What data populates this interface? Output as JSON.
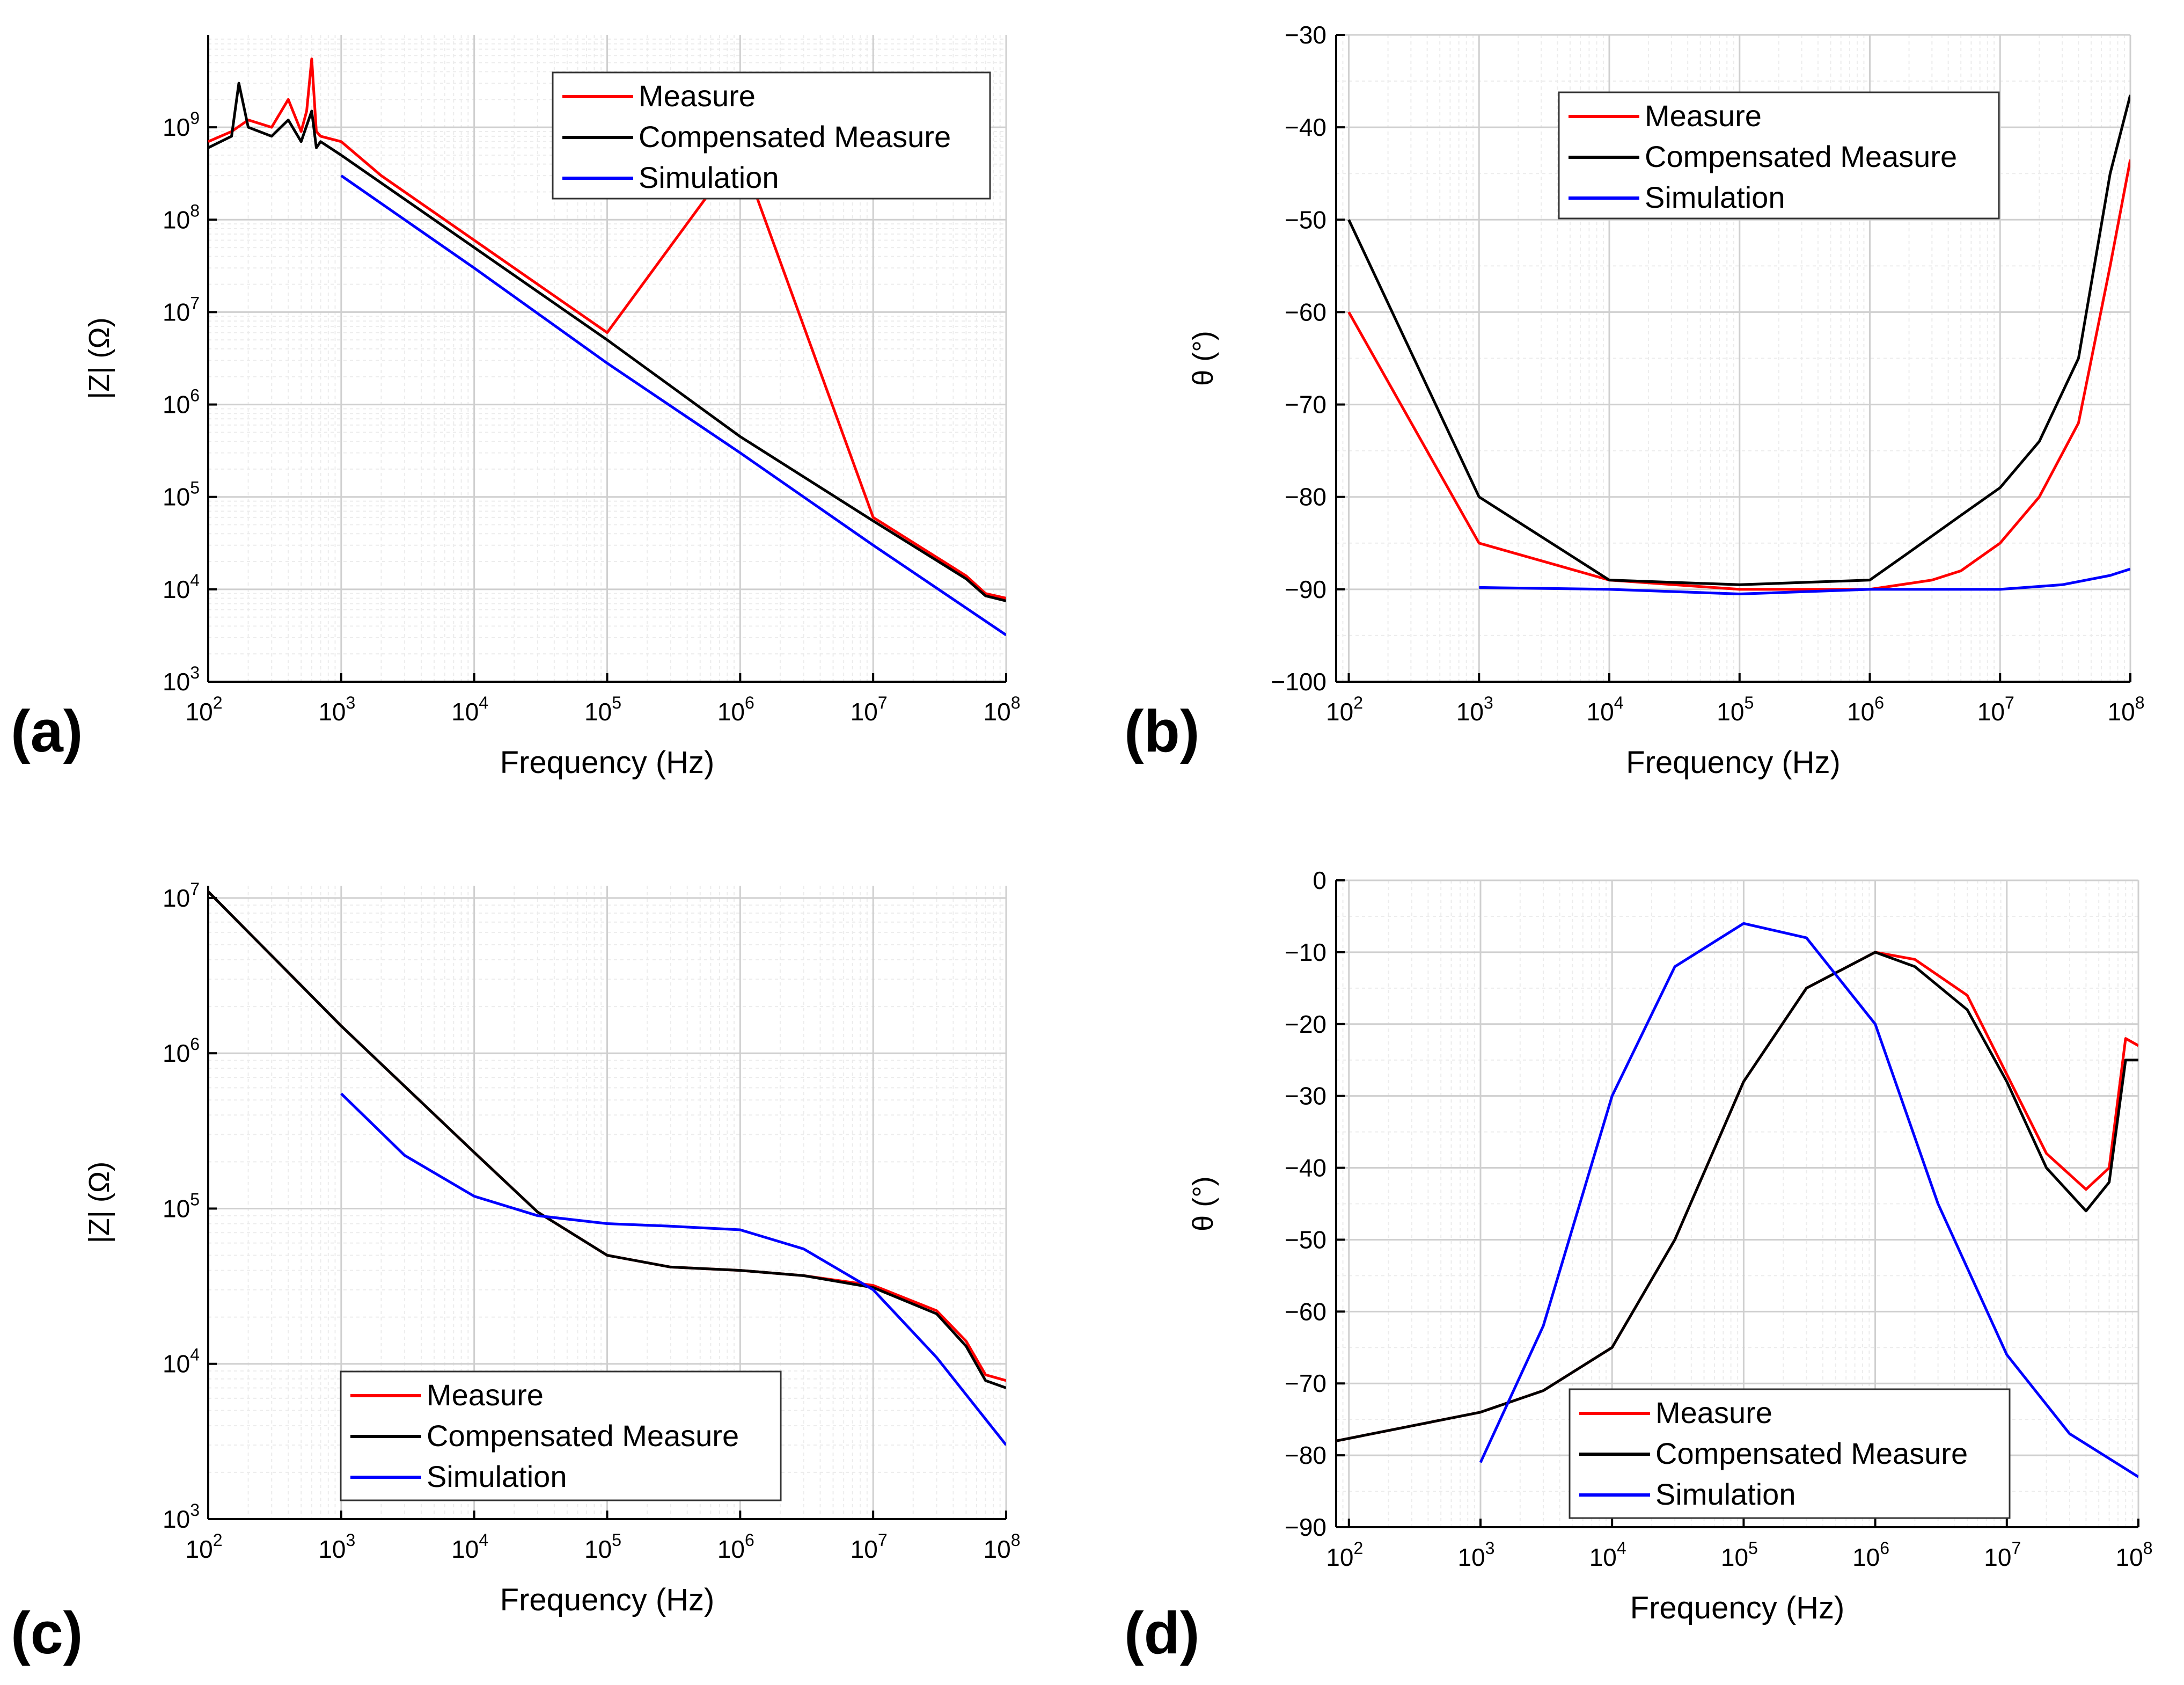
{
  "figure": {
    "panel_labels": [
      "(a)",
      "(b)",
      "(c)",
      "(d)"
    ]
  },
  "colors": {
    "measure": "#ff0000",
    "compensated": "#000000",
    "simulation": "#0000ff",
    "grid_major": "#cfcfcf",
    "grid_minor": "#ececec",
    "axis": "#000000"
  },
  "chart_data": [
    {
      "id": "a",
      "type": "line",
      "x_scale": "log",
      "y_scale": "log",
      "xlabel": "Frequency (Hz)",
      "ylabel": "|Z| (Ω)",
      "xlim": [
        100,
        100000000
      ],
      "ylim": [
        1000,
        10000000000
      ],
      "x_ticks": [
        "10^2",
        "10^3",
        "10^4",
        "10^5",
        "10^6",
        "10^7",
        "10^8"
      ],
      "y_ticks": [
        "10^3",
        "10^4",
        "10^5",
        "10^6",
        "10^7",
        "10^8",
        "10^9"
      ],
      "legend": [
        "Measure",
        "Compensated Measure",
        "Simulation"
      ],
      "legend_position": "top-right",
      "series": [
        {
          "name": "Measure",
          "color": "#ff0000",
          "x": [
            100,
            150,
            200,
            300,
            400,
            500,
            550,
            600,
            650,
            700,
            1000,
            2000,
            5000,
            10000,
            100000,
            1000000,
            10000000,
            50000000,
            70000000,
            100000000
          ],
          "y": [
            700000000,
            900000000,
            1200000000,
            1000000000,
            2000000000,
            900000000,
            1500000000,
            5500000000,
            900000000,
            800000000,
            700000000,
            300000000,
            120000000,
            60000000,
            6000000,
            550000000,
            60000,
            14000,
            9000,
            8000
          ]
        },
        {
          "name": "Compensated Measure",
          "color": "#000000",
          "x": [
            100,
            150,
            170,
            200,
            300,
            400,
            500,
            600,
            650,
            700,
            1000,
            2000,
            5000,
            10000,
            100000,
            1000000,
            10000000,
            50000000,
            70000000,
            100000000
          ],
          "y": [
            600000000,
            800000000,
            3000000000,
            1000000000,
            800000000,
            1200000000,
            700000000,
            1500000000,
            600000000,
            700000000,
            500000000,
            250000000,
            100000000,
            50000000,
            5000000,
            450000,
            55000,
            13000,
            8500,
            7500
          ]
        },
        {
          "name": "Simulation",
          "color": "#0000ff",
          "x": [
            1000,
            10000,
            100000,
            1000000,
            10000000,
            100000000
          ],
          "y": [
            300000000,
            30000000,
            2800000,
            300000,
            30000,
            3200
          ]
        }
      ]
    },
    {
      "id": "b",
      "type": "line",
      "x_scale": "log",
      "y_scale": "linear",
      "xlabel": "Frequency (Hz)",
      "ylabel": "θ (°)",
      "xlim": [
        80,
        100000000
      ],
      "ylim": [
        -100,
        -30
      ],
      "x_ticks": [
        "10^2",
        "10^3",
        "10^4",
        "10^5",
        "10^6",
        "10^7",
        "10^8"
      ],
      "y_ticks": [
        "-100",
        "-90",
        "-80",
        "-70",
        "-60",
        "-50",
        "-40",
        "-30"
      ],
      "legend": [
        "Measure",
        "Compensated Measure",
        "Simulation"
      ],
      "legend_position": "top-right",
      "series": [
        {
          "name": "Measure",
          "color": "#ff0000",
          "x": [
            100,
            1000,
            10000,
            100000,
            1000000,
            3000000,
            5000000,
            10000000,
            20000000,
            40000000,
            70000000,
            100000000
          ],
          "y": [
            -60,
            -85,
            -89,
            -90,
            -90,
            -89,
            -88,
            -85,
            -80,
            -72,
            -55,
            -43.5
          ]
        },
        {
          "name": "Compensated Measure",
          "color": "#000000",
          "x": [
            100,
            1000,
            10000,
            100000,
            1000000,
            2000000,
            5000000,
            10000000,
            20000000,
            40000000,
            70000000,
            100000000
          ],
          "y": [
            -50,
            -80,
            -89,
            -89.5,
            -89,
            -86,
            -82,
            -79,
            -74,
            -65,
            -45,
            -36.5
          ]
        },
        {
          "name": "Simulation",
          "color": "#0000ff",
          "x": [
            1000,
            10000,
            100000,
            1000000,
            10000000,
            30000000,
            70000000,
            100000000
          ],
          "y": [
            -89.8,
            -90,
            -90.5,
            -90,
            -90,
            -89.5,
            -88.5,
            -87.8
          ]
        }
      ]
    },
    {
      "id": "c",
      "type": "line",
      "x_scale": "log",
      "y_scale": "log",
      "xlabel": "Frequency (Hz)",
      "ylabel": "|Z| (Ω)",
      "xlim": [
        100,
        100000000
      ],
      "ylim": [
        1000,
        12000000
      ],
      "x_ticks": [
        "10^2",
        "10^3",
        "10^4",
        "10^5",
        "10^6",
        "10^7",
        "10^8"
      ],
      "y_ticks": [
        "10^3",
        "10^4",
        "10^5",
        "10^6",
        "10^7"
      ],
      "legend": [
        "Measure",
        "Compensated Measure",
        "Simulation"
      ],
      "legend_position": "bottom-center",
      "series": [
        {
          "name": "Measure",
          "color": "#ff0000",
          "x": [
            100,
            1000,
            10000,
            30000,
            100000,
            300000,
            1000000,
            3000000,
            10000000,
            30000000,
            50000000,
            70000000,
            100000000
          ],
          "y": [
            11000000,
            1500000,
            230000,
            95000,
            50000,
            42000,
            40000,
            37000,
            32000,
            22000,
            14000,
            8500,
            7800
          ]
        },
        {
          "name": "Compensated Measure",
          "color": "#000000",
          "x": [
            100,
            1000,
            10000,
            30000,
            100000,
            300000,
            1000000,
            3000000,
            10000000,
            30000000,
            50000000,
            70000000,
            100000000
          ],
          "y": [
            11000000,
            1500000,
            230000,
            95000,
            50000,
            42000,
            40000,
            37000,
            31000,
            21000,
            13000,
            7800,
            7000
          ]
        },
        {
          "name": "Simulation",
          "color": "#0000ff",
          "x": [
            1000,
            3000,
            10000,
            30000,
            100000,
            300000,
            1000000,
            3000000,
            10000000,
            30000000,
            100000000
          ],
          "y": [
            550000,
            220000,
            120000,
            90000,
            80000,
            77000,
            73000,
            55000,
            30000,
            11000,
            3000
          ]
        }
      ]
    },
    {
      "id": "d",
      "type": "line",
      "x_scale": "log",
      "y_scale": "linear",
      "xlabel": "Frequency (Hz)",
      "ylabel": "θ (°)",
      "xlim": [
        80,
        100000000
      ],
      "ylim": [
        -90,
        0
      ],
      "x_ticks": [
        "10^2",
        "10^3",
        "10^4",
        "10^5",
        "10^6",
        "10^7",
        "10^8"
      ],
      "y_ticks": [
        "-90",
        "-80",
        "-70",
        "-60",
        "-50",
        "-40",
        "-30",
        "-20",
        "-10",
        "0"
      ],
      "legend": [
        "Measure",
        "Compensated Measure",
        "Simulation"
      ],
      "legend_position": "bottom-center",
      "series": [
        {
          "name": "Measure",
          "color": "#ff0000",
          "x": [
            80,
            1000,
            3000,
            10000,
            30000,
            100000,
            300000,
            1000000,
            2000000,
            5000000,
            10000000,
            20000000,
            40000000,
            60000000,
            80000000,
            100000000
          ],
          "y": [
            -78,
            -74,
            -71,
            -65,
            -50,
            -28,
            -15,
            -10,
            -11,
            -16,
            -27,
            -38,
            -43,
            -40,
            -22,
            -23
          ]
        },
        {
          "name": "Compensated Measure",
          "color": "#000000",
          "x": [
            80,
            1000,
            3000,
            10000,
            30000,
            100000,
            300000,
            1000000,
            2000000,
            5000000,
            10000000,
            20000000,
            40000000,
            60000000,
            80000000,
            100000000
          ],
          "y": [
            -78,
            -74,
            -71,
            -65,
            -50,
            -28,
            -15,
            -10,
            -12,
            -18,
            -28,
            -40,
            -46,
            -42,
            -25,
            -25
          ]
        },
        {
          "name": "Simulation",
          "color": "#0000ff",
          "x": [
            1000,
            3000,
            10000,
            30000,
            100000,
            300000,
            1000000,
            3000000,
            10000000,
            30000000,
            100000000
          ],
          "y": [
            -81,
            -62,
            -30,
            -12,
            -6,
            -8,
            -20,
            -45,
            -66,
            -77,
            -83
          ]
        }
      ]
    }
  ]
}
